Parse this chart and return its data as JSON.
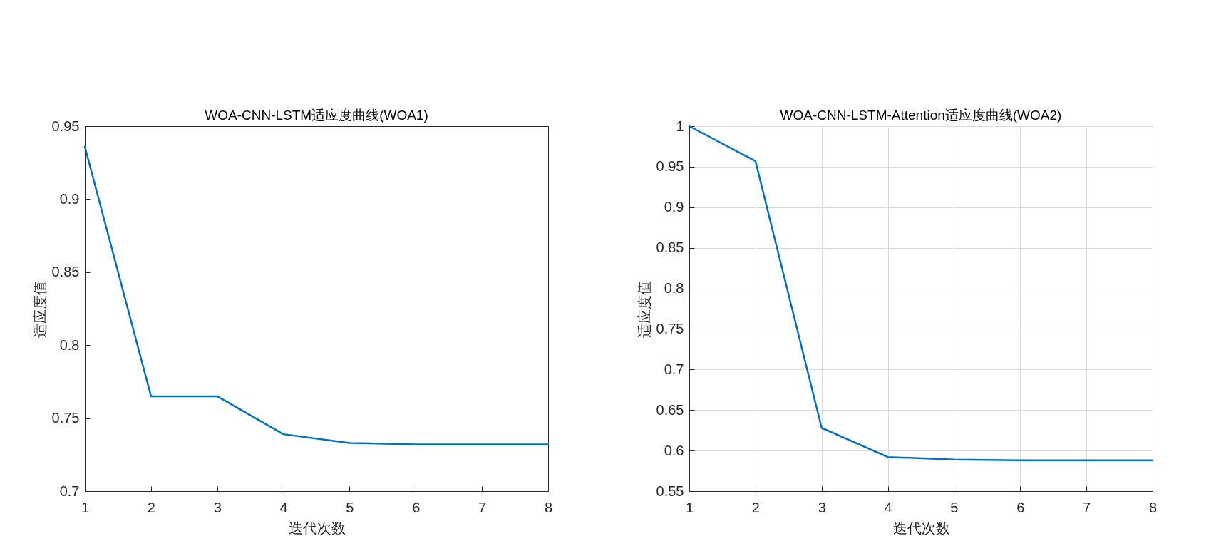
{
  "chart_data": [
    {
      "type": "line",
      "title": "WOA-CNN-LSTM适应度曲线(WOA1)",
      "xlabel": "迭代次数",
      "ylabel": "适应度值",
      "x": [
        1,
        2,
        3,
        4,
        5,
        6,
        7,
        8
      ],
      "series": [
        {
          "color": "#0072bd",
          "values": [
            0.936,
            0.765,
            0.765,
            0.739,
            0.733,
            0.732,
            0.732,
            0.732
          ]
        }
      ],
      "xlim": [
        1,
        8
      ],
      "xticks": [
        1,
        2,
        3,
        4,
        5,
        6,
        7,
        8
      ],
      "ylim": [
        0.7,
        0.95
      ],
      "yticks": [
        0.7,
        0.75,
        0.8,
        0.85,
        0.9,
        0.95
      ],
      "grid": false,
      "line_style": "solid"
    },
    {
      "type": "line",
      "title": "WOA-CNN-LSTM-Attention适应度曲线(WOA2)",
      "xlabel": "迭代次数",
      "ylabel": "适应度值",
      "x": [
        1,
        2,
        3,
        4,
        5,
        6,
        7,
        8
      ],
      "series": [
        {
          "color": "#0072bd",
          "values": [
            1,
            0.957,
            0.628,
            0.592,
            0.589,
            0.588,
            0.588,
            0.588
          ]
        }
      ],
      "xlim": [
        1,
        8
      ],
      "xticks": [
        1,
        2,
        3,
        4,
        5,
        6,
        7,
        8
      ],
      "ylim": [
        0.55,
        1
      ],
      "yticks": [
        0.55,
        0.6,
        0.65,
        0.7,
        0.75,
        0.8,
        0.85,
        0.9,
        0.95,
        1
      ],
      "grid": true,
      "line_style": "solid"
    }
  ]
}
